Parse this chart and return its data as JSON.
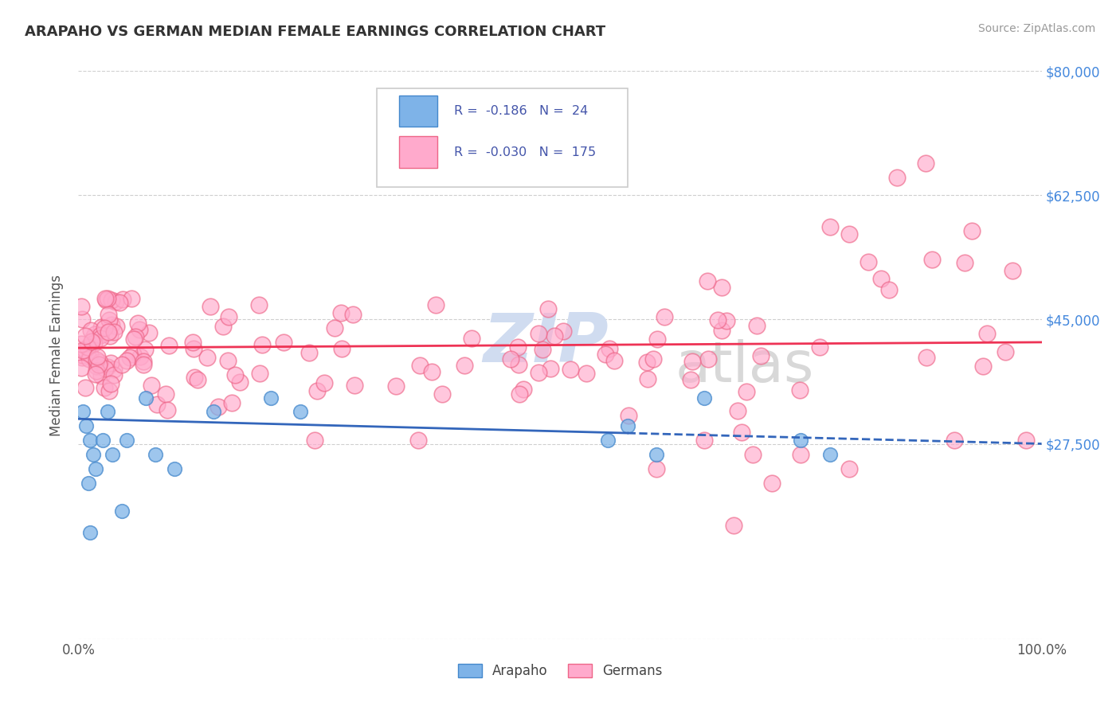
{
  "title": "ARAPAHO VS GERMAN MEDIAN FEMALE EARNINGS CORRELATION CHART",
  "source": "Source: ZipAtlas.com",
  "ylabel": "Median Female Earnings",
  "xlim": [
    0,
    100
  ],
  "ylim": [
    0,
    80000
  ],
  "yticks": [
    0,
    27500,
    45000,
    62500,
    80000
  ],
  "ytick_labels": [
    "",
    "$27,500",
    "$45,000",
    "$62,500",
    "$80,000"
  ],
  "legend_r_arapaho": "-0.186",
  "legend_n_arapaho": "24",
  "legend_r_german": "-0.030",
  "legend_n_german": "175",
  "arapaho_color": "#7EB3E8",
  "arapaho_edge_color": "#4488CC",
  "german_color": "#FFAACC",
  "german_edge_color": "#EE6688",
  "arapaho_line_color": "#3366BB",
  "german_line_color": "#EE3355",
  "background_color": "#FFFFFF",
  "grid_color": "#BBBBBB",
  "watermark_zip_color": "#D0DCF0",
  "watermark_atlas_color": "#D8D8D8",
  "title_color": "#333333",
  "source_color": "#999999",
  "axis_label_color": "#555555",
  "ytick_color": "#4488DD",
  "xtick_color": "#555555",
  "legend_border_color": "#CCCCCC",
  "legend_text_color": "#4455AA"
}
